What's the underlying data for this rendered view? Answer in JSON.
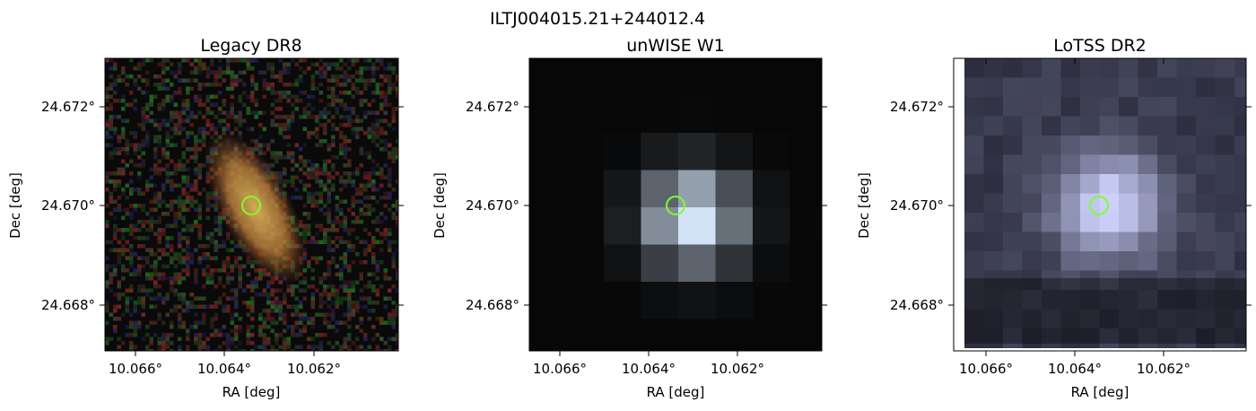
{
  "figure": {
    "title": "ILTJ004015.21+244012.4"
  },
  "panels": [
    {
      "id": "legacy",
      "title": "Legacy DR8",
      "xlabel": "RA [deg]",
      "ylabel": "Dec [deg]",
      "xticks": [
        "10.066°",
        "10.064°",
        "10.062°"
      ],
      "yticks": [
        "24.672°",
        "24.670°",
        "24.668°"
      ]
    },
    {
      "id": "unwise",
      "title": "unWISE W1",
      "xlabel": "RA [deg]",
      "ylabel": "Dec [deg]",
      "xticks": [
        "10.066°",
        "10.064°",
        "10.062°"
      ],
      "yticks": [
        "24.672°",
        "24.670°",
        "24.668°"
      ]
    },
    {
      "id": "lotss",
      "title": "LoTSS DR2",
      "xlabel": "RA [deg]",
      "ylabel": "Dec [deg]",
      "xticks": [
        "10.066°",
        "10.064°",
        "10.062°"
      ],
      "yticks": [
        "24.672°",
        "24.670°",
        "24.668°"
      ]
    }
  ],
  "colors": {
    "marker": "#7fff2a",
    "axes": "#000000"
  }
}
